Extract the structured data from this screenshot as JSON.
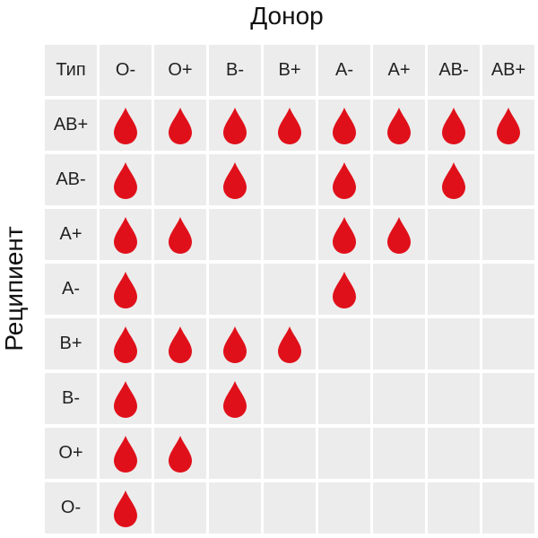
{
  "titles": {
    "donor": "Донор",
    "recipient": "Реципиент"
  },
  "corner_label": "Тип",
  "donors": [
    "O-",
    "O+",
    "B-",
    "B+",
    "A-",
    "A+",
    "AB-",
    "AB+"
  ],
  "recipients": [
    "AB+",
    "AB-",
    "A+",
    "A-",
    "B+",
    "B-",
    "O+",
    "O-"
  ],
  "compatibility": [
    [
      1,
      1,
      1,
      1,
      1,
      1,
      1,
      1
    ],
    [
      1,
      0,
      1,
      0,
      1,
      0,
      1,
      0
    ],
    [
      1,
      1,
      0,
      0,
      1,
      1,
      0,
      0
    ],
    [
      1,
      0,
      0,
      0,
      1,
      0,
      0,
      0
    ],
    [
      1,
      1,
      1,
      1,
      0,
      0,
      0,
      0
    ],
    [
      1,
      0,
      1,
      0,
      0,
      0,
      0,
      0
    ],
    [
      1,
      1,
      0,
      0,
      0,
      0,
      0,
      0
    ],
    [
      1,
      0,
      0,
      0,
      0,
      0,
      0,
      0
    ]
  ],
  "colors": {
    "drop": "#e0101a",
    "cell": "#ececec"
  },
  "icons": {
    "compatible": "blood-drop-icon"
  }
}
